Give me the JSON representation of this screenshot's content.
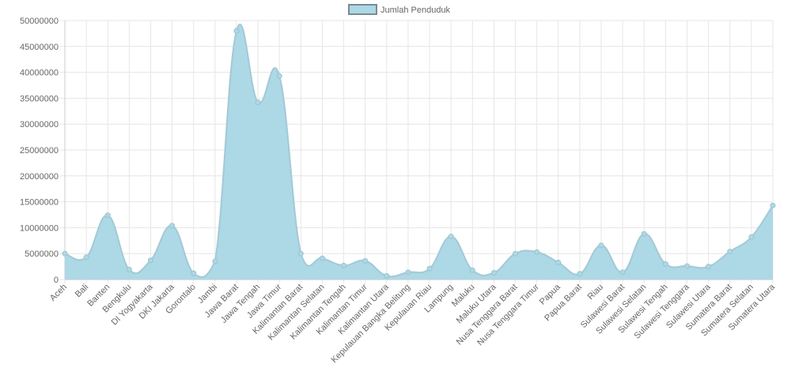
{
  "legend": {
    "label": "Jumlah Penduduk",
    "swatch_fill": "#add8e6",
    "swatch_stroke": "#7a8a90"
  },
  "colors": {
    "fill": "#add8e6",
    "line": "#a3c9d6",
    "point": "#add8e6",
    "grid": "#e6e6e6",
    "tick_text": "#666666"
  },
  "chart_data": {
    "type": "area",
    "title": "",
    "xlabel": "",
    "ylabel": "",
    "ylim": [
      0,
      50000000
    ],
    "yticks": [
      0,
      5000000,
      10000000,
      15000000,
      20000000,
      25000000,
      30000000,
      35000000,
      40000000,
      45000000,
      50000000
    ],
    "grid": true,
    "legend_position": "top",
    "categories": [
      "Aceh",
      "Bali",
      "Banten",
      "Bengkulu",
      "DI Yogyakarta",
      "DKI Jakarta",
      "Gorontalo",
      "Jambi",
      "Jawa Barat",
      "Jawa Tengah",
      "Jawa Timur",
      "Kalimantan Barat",
      "Kalimantan Selatan",
      "Kalimantan Tengah",
      "Kalimantan Timur",
      "Kalimantan Utara",
      "Kepulauan Bangka Belitung",
      "Kepulauan Riau",
      "Lampung",
      "Maluku",
      "Maluku Utara",
      "Nusa Tenggara Barat",
      "Nusa Tenggara Timur",
      "Papua",
      "Papua Barat",
      "Riau",
      "Sulawesi Barat",
      "Sulawesi Selatan",
      "Sulawesi Tengah",
      "Sulawesi Tenggara",
      "Sulawesi Utara",
      "Sumatera Barat",
      "Sumatera Selatan",
      "Sumatera Utara"
    ],
    "series": [
      {
        "name": "Jumlah Penduduk",
        "values": [
          5000000,
          4300000,
          12400000,
          1900000,
          3700000,
          10400000,
          1200000,
          3500000,
          48000000,
          34200000,
          39300000,
          5000000,
          4100000,
          2700000,
          3600000,
          700000,
          1400000,
          2100000,
          8300000,
          1800000,
          1300000,
          5000000,
          5300000,
          3300000,
          1100000,
          6600000,
          1400000,
          8800000,
          3000000,
          2600000,
          2500000,
          5400000,
          8200000,
          14300000
        ]
      }
    ]
  }
}
